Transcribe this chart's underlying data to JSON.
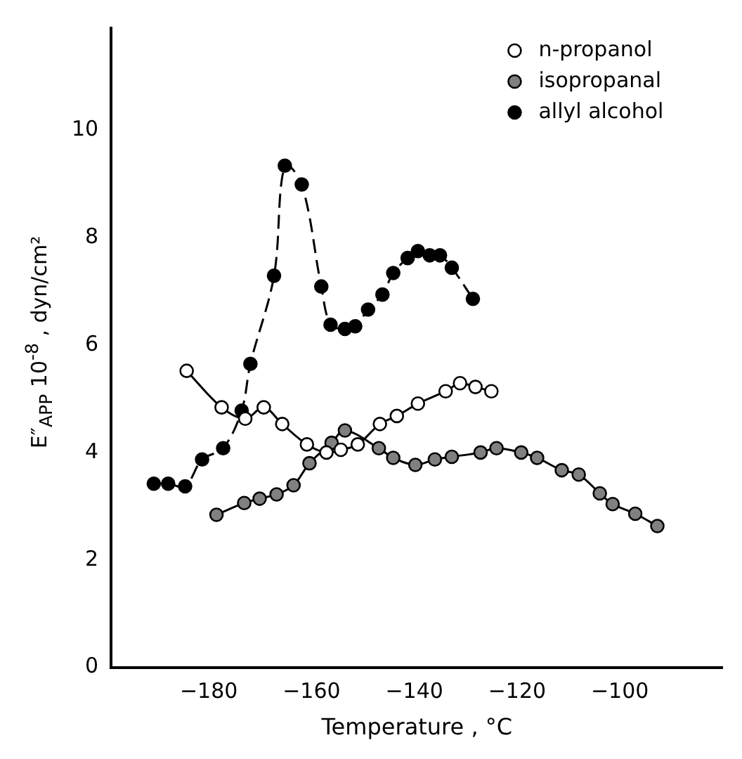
{
  "chart_data": {
    "type": "line",
    "xlabel": "Temperature , °C",
    "ylabel": "E″$_{APP}$ 10$^{-8}$ , dyn/cm²",
    "xlim": [
      -199,
      -80
    ],
    "xticks": [
      -180,
      -160,
      -140,
      -120,
      -100
    ],
    "ylim": [
      0,
      11.9
    ],
    "yticks": [
      0,
      2,
      4,
      6,
      8,
      10
    ],
    "legend": "top right",
    "marker": "circle",
    "grid": false,
    "series": [
      {
        "name": "n-propanol",
        "color": "#000000",
        "line_style": "solid",
        "x": [
          -184.3,
          -177.5,
          -172.9,
          -169.3,
          -165.7,
          -160.9,
          -157.1,
          -154.3,
          -151.0,
          -146.7,
          -143.4,
          -139.3,
          -133.9,
          -131.1,
          -128.1,
          -125.0
        ],
        "values": [
          5.52,
          4.84,
          4.63,
          4.84,
          4.53,
          4.15,
          4.0,
          4.05,
          4.15,
          4.53,
          4.68,
          4.91,
          5.14,
          5.29,
          5.22,
          5.14
        ]
      },
      {
        "name": "isopropanal",
        "color": "#000000",
        "line_style": "solid",
        "x": [
          -178.5,
          -173.1,
          -170.1,
          -166.8,
          -163.5,
          -160.4,
          -156.1,
          -153.5,
          -146.9,
          -144.1,
          -139.8,
          -136.0,
          -132.7,
          -127.1,
          -124.0,
          -119.2,
          -116.1,
          -111.3,
          -108.0,
          -103.9,
          -101.4,
          -97.0,
          -92.7
        ],
        "values": [
          2.84,
          3.06,
          3.14,
          3.22,
          3.39,
          3.8,
          4.18,
          4.41,
          4.08,
          3.9,
          3.77,
          3.87,
          3.92,
          4.0,
          4.08,
          4.0,
          3.9,
          3.67,
          3.59,
          3.24,
          3.04,
          2.86,
          2.63
        ]
      },
      {
        "name": "allyl alcohol",
        "color": "#000000",
        "line_style": "dashed",
        "x": [
          -190.7,
          -187.9,
          -184.6,
          -181.3,
          -177.2,
          -173.6,
          -171.9,
          -167.3,
          -165.2,
          -161.9,
          -158.1,
          -156.3,
          -153.5,
          -151.5,
          -149.0,
          -146.2,
          -144.1,
          -141.3,
          -139.3,
          -137.0,
          -135.0,
          -132.7,
          -128.6
        ],
        "values": [
          3.42,
          3.42,
          3.37,
          3.87,
          4.08,
          4.78,
          5.65,
          7.29,
          9.34,
          8.99,
          7.09,
          6.38,
          6.3,
          6.35,
          6.66,
          6.94,
          7.34,
          7.62,
          7.75,
          7.67,
          7.67,
          7.44,
          6.86
        ]
      }
    ]
  }
}
